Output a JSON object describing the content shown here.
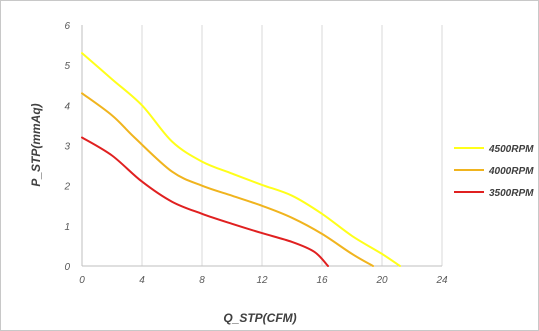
{
  "chart_data": {
    "type": "line",
    "xlabel": "Q_STP(CFM)",
    "ylabel": "P_STP(mmAq)",
    "xlim": [
      0,
      24
    ],
    "ylim": [
      0,
      6
    ],
    "xticks": [
      0,
      4,
      8,
      12,
      16,
      20,
      24
    ],
    "yticks": [
      0,
      1,
      2,
      3,
      4,
      5,
      6
    ],
    "grid": "vertical",
    "legend_position": "right",
    "series": [
      {
        "name": "4500RPM",
        "color": "#FFFF1A",
        "points": [
          [
            0,
            5.3
          ],
          [
            2,
            4.65
          ],
          [
            4,
            4.0
          ],
          [
            6,
            3.1
          ],
          [
            8,
            2.6
          ],
          [
            10,
            2.3
          ],
          [
            12,
            2.02
          ],
          [
            14,
            1.75
          ],
          [
            16,
            1.3
          ],
          [
            18,
            0.75
          ],
          [
            20,
            0.3
          ],
          [
            21.2,
            0.0
          ]
        ]
      },
      {
        "name": "4000RPM",
        "color": "#F0B41E",
        "points": [
          [
            0,
            4.3
          ],
          [
            2,
            3.75
          ],
          [
            3.5,
            3.2
          ],
          [
            6,
            2.35
          ],
          [
            8,
            2.0
          ],
          [
            10,
            1.75
          ],
          [
            12,
            1.5
          ],
          [
            14,
            1.2
          ],
          [
            16,
            0.8
          ],
          [
            18,
            0.3
          ],
          [
            19.4,
            0.0
          ]
        ]
      },
      {
        "name": "3500RPM",
        "color": "#E02020",
        "points": [
          [
            0,
            3.2
          ],
          [
            2,
            2.75
          ],
          [
            4,
            2.1
          ],
          [
            6,
            1.6
          ],
          [
            8,
            1.3
          ],
          [
            10,
            1.05
          ],
          [
            12,
            0.82
          ],
          [
            14,
            0.6
          ],
          [
            15.5,
            0.35
          ],
          [
            16.4,
            0.0
          ]
        ]
      }
    ]
  }
}
